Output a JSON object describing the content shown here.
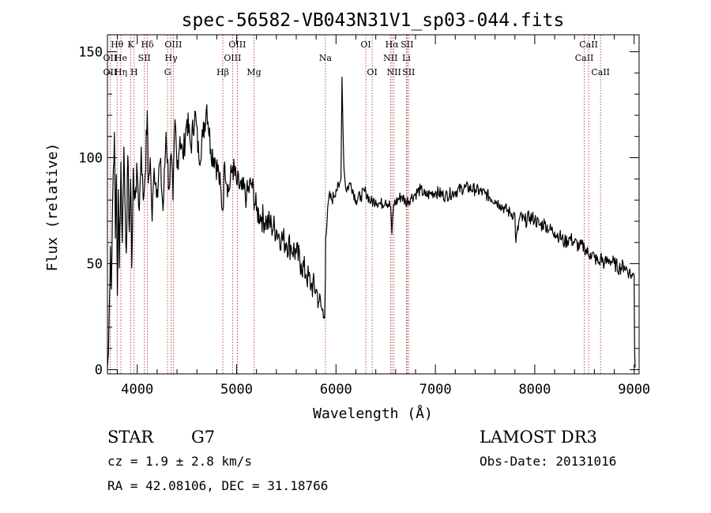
{
  "chart_data": {
    "type": "line",
    "title": "spec-56582-VB043N31V1_sp03-044.fits",
    "xlabel": "Wavelength (Å)",
    "ylabel": "Flux (relative)",
    "xlim": [
      3700,
      9050
    ],
    "ylim": [
      -2,
      158
    ],
    "x_ticks": [
      4000,
      5000,
      6000,
      7000,
      8000,
      9000
    ],
    "y_ticks": [
      0,
      50,
      100,
      150
    ],
    "series": [
      {
        "name": "flux",
        "x": [
          3700,
          3710,
          3720,
          3730,
          3740,
          3750,
          3760,
          3770,
          3780,
          3790,
          3800,
          3810,
          3820,
          3835,
          3850,
          3865,
          3880,
          3890,
          3905,
          3920,
          3933,
          3945,
          3960,
          3970,
          3985,
          4000,
          4020,
          4040,
          4060,
          4080,
          4101,
          4110,
          4130,
          4150,
          4170,
          4200,
          4230,
          4260,
          4290,
          4320,
          4340,
          4360,
          4380,
          4400,
          4430,
          4460,
          4500,
          4540,
          4580,
          4620,
          4660,
          4700,
          4740,
          4780,
          4820,
          4861,
          4880,
          4920,
          4960,
          5000,
          5050,
          5100,
          5150,
          5200,
          5250,
          5300,
          5350,
          5400,
          5450,
          5500,
          5550,
          5600,
          5650,
          5700,
          5750,
          5800,
          5830,
          5860,
          5880,
          5890,
          5896,
          5910,
          5930,
          5960,
          6000,
          6030,
          6050,
          6060,
          6070,
          6080,
          6100,
          6150,
          6200,
          6250,
          6300,
          6350,
          6400,
          6450,
          6500,
          6550,
          6563,
          6580,
          6620,
          6660,
          6700,
          6750,
          6800,
          6850,
          6900,
          6950,
          7000,
          7100,
          7200,
          7300,
          7400,
          7500,
          7600,
          7650,
          7700,
          7750,
          7800,
          7810,
          7850,
          7900,
          7950,
          8000,
          8050,
          8100,
          8150,
          8200,
          8250,
          8300,
          8350,
          8400,
          8450,
          8500,
          8542,
          8560,
          8600,
          8650,
          8662,
          8700,
          8750,
          8800,
          8850,
          8900,
          8950,
          8980,
          9000,
          9005,
          9010
        ],
        "values": [
          1,
          8,
          32,
          58,
          38,
          75,
          95,
          112,
          62,
          92,
          35,
          85,
          48,
          98,
          60,
          105,
          72,
          55,
          101,
          65,
          90,
          48,
          95,
          80,
          86,
          93,
          75,
          105,
          80,
          92,
          122,
          88,
          100,
          70,
          95,
          85,
          98,
          75,
          112,
          85,
          102,
          80,
          118,
          95,
          110,
          100,
          118,
          105,
          122,
          100,
          110,
          125,
          104,
          100,
          92,
          75,
          98,
          84,
          96,
          88,
          85,
          82,
          88,
          75,
          72,
          70,
          68,
          66,
          62,
          60,
          58,
          55,
          50,
          45,
          40,
          38,
          32,
          28,
          25,
          35,
          62,
          70,
          82,
          80,
          85,
          86,
          90,
          138,
          115,
          95,
          85,
          88,
          80,
          82,
          84,
          79,
          80,
          78,
          80,
          77,
          64,
          78,
          80,
          82,
          79,
          81,
          83,
          85,
          82,
          83,
          84,
          82,
          84,
          86,
          85,
          83,
          80,
          78,
          76,
          74,
          73,
          60,
          72,
          70,
          72,
          71,
          68,
          69,
          66,
          65,
          63,
          60,
          62,
          60,
          58,
          58,
          54,
          55,
          53,
          50,
          53,
          50,
          52,
          50,
          48,
          49,
          46,
          44,
          45,
          10,
          1
        ]
      }
    ],
    "spectral_lines": [
      {
        "label": "Hθ",
        "x": 3797,
        "row": 1
      },
      {
        "label": "OII",
        "x": 3727,
        "row": 2
      },
      {
        "label": "OII",
        "x": 3727,
        "row": 3
      },
      {
        "label": "He",
        "x": 3835,
        "row": 2
      },
      {
        "label": "Hη",
        "x": 3835,
        "row": 3
      },
      {
        "label": "K",
        "x": 3934,
        "row": 1
      },
      {
        "label": "H",
        "x": 3969,
        "row": 3
      },
      {
        "label": "SII",
        "x": 4072,
        "row": 2
      },
      {
        "label": "Hδ",
        "x": 4102,
        "row": 1
      },
      {
        "label": "OIII",
        "x": 4363,
        "row": 1
      },
      {
        "label": "Hγ",
        "x": 4341,
        "row": 2
      },
      {
        "label": "G",
        "x": 4305,
        "row": 3
      },
      {
        "label": "Hβ",
        "x": 4861,
        "row": 3
      },
      {
        "label": "OIII",
        "x": 5007,
        "row": 1
      },
      {
        "label": "OIII",
        "x": 4959,
        "row": 2
      },
      {
        "label": "Mg",
        "x": 5175,
        "row": 3
      },
      {
        "label": "Na",
        "x": 5893,
        "row": 2
      },
      {
        "label": "OI",
        "x": 6300,
        "row": 1
      },
      {
        "label": "OI",
        "x": 6364,
        "row": 3
      },
      {
        "label": "Hα",
        "x": 6563,
        "row": 1
      },
      {
        "label": "NII",
        "x": 6548,
        "row": 2
      },
      {
        "label": "NII",
        "x": 6583,
        "row": 3
      },
      {
        "label": "SII",
        "x": 6716,
        "row": 1
      },
      {
        "label": "Li",
        "x": 6708,
        "row": 2
      },
      {
        "label": "SII",
        "x": 6731,
        "row": 3
      },
      {
        "label": "CaII",
        "x": 8542,
        "row": 1
      },
      {
        "label": "CaII",
        "x": 8498,
        "row": 2
      },
      {
        "label": "CaII",
        "x": 8662,
        "row": 3
      }
    ]
  },
  "info": {
    "object_class": "STAR",
    "subclass": "G7",
    "survey": "LAMOST DR3",
    "cz": "cz = 1.9 ± 2.8 km/s",
    "obs_date": "Obs-Date: 20131016",
    "coords": "RA =  42.08106, DEC =  31.18766"
  },
  "colors": {
    "spectrum": "#000000",
    "line_marker": "#b22222",
    "axis": "#000000"
  }
}
